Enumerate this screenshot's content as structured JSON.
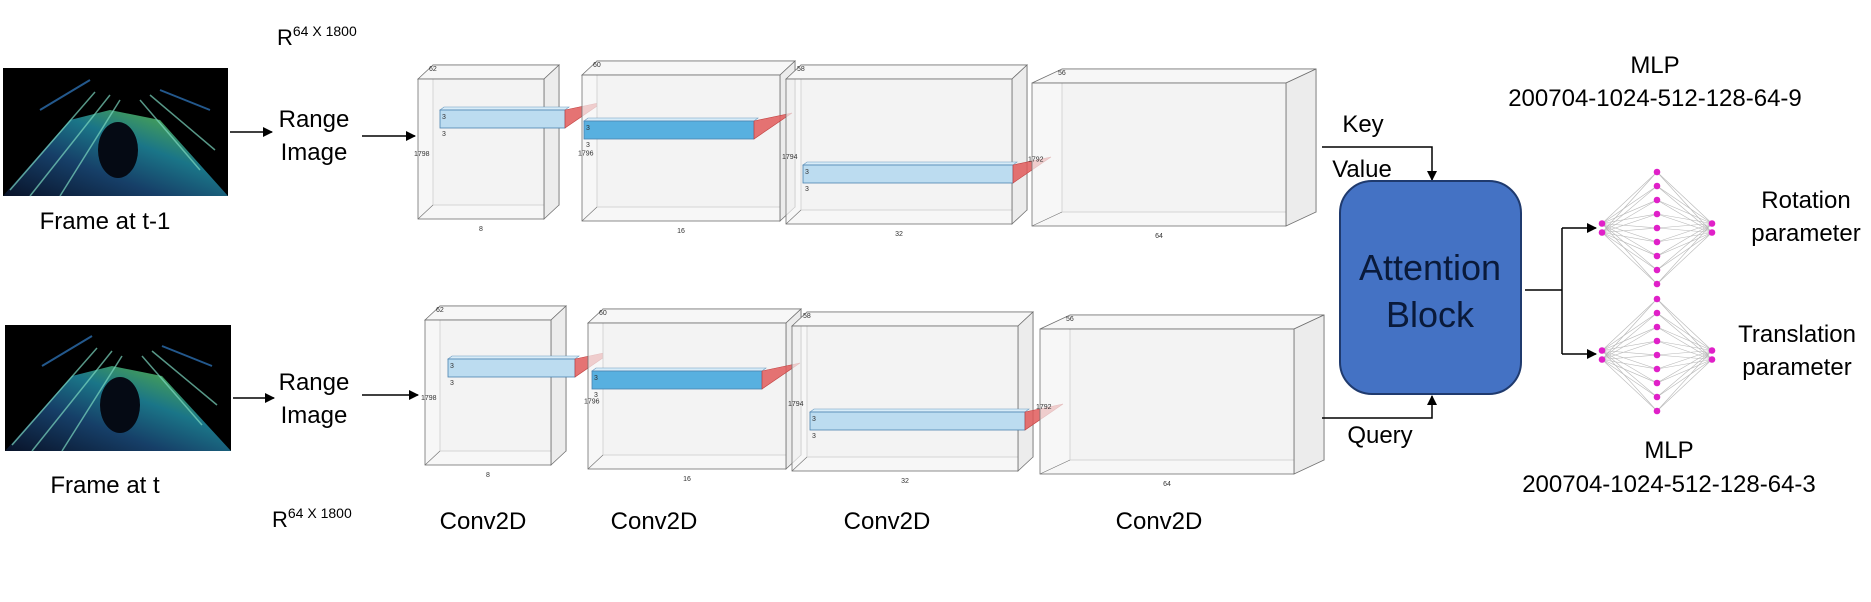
{
  "frames": {
    "top_caption": "Frame at t-1",
    "bottom_caption": "Frame at t"
  },
  "range_image": {
    "line1": "Range",
    "line2": "Image",
    "dim_symbol": "R",
    "dim_sup": "64 X 1800"
  },
  "conv_labels": [
    "Conv2D",
    "Conv2D",
    "Conv2D",
    "Conv2D"
  ],
  "layers": [
    {
      "depth": "8",
      "height": "1798",
      "width": "62",
      "kernel_a": "3",
      "kernel_b": "3"
    },
    {
      "depth": "16",
      "height": "1796",
      "width": "60",
      "kernel_a": "3",
      "kernel_b": "3"
    },
    {
      "depth": "32",
      "height": "1794",
      "width": "58",
      "kernel_a": "3",
      "kernel_b": "3"
    },
    {
      "depth": "64",
      "height": "1792",
      "width": "56",
      "kernel_a": "",
      "kernel_b": ""
    }
  ],
  "attention": {
    "key": "Key",
    "value": "Value",
    "query": "Query",
    "line1": "Attention",
    "line2": "Block",
    "fill": "#4472c4"
  },
  "mlp": {
    "top_title": "MLP",
    "top_spec": "200704-1024-512-128-64-9",
    "bottom_title": "MLP",
    "bottom_spec": "200704-1024-512-128-64-3",
    "node_color": "#e020c8"
  },
  "outputs": {
    "rotation_line1": "Rotation",
    "rotation_line2": "parameter",
    "translation_line1": "Translation",
    "translation_line2": "parameter"
  },
  "colors": {
    "kernel_light": "#bcdcf0",
    "kernel_dark": "#58b0e0",
    "kernel_tip": "#e05a5a",
    "box_fill": "#f2f2f2",
    "box_edge": "#707070"
  }
}
